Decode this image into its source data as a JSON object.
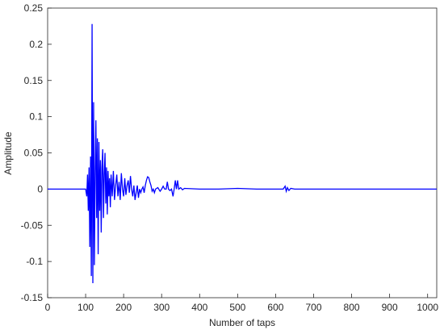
{
  "chart_data": {
    "type": "line",
    "xlabel": "Number of taps",
    "ylabel": "Amplitude",
    "color": "#0000ff",
    "x": [
      0,
      100,
      103,
      105,
      107,
      109,
      111,
      113,
      115,
      117,
      119,
      121,
      123,
      125,
      127,
      129,
      131,
      133,
      135,
      137,
      139,
      141,
      143,
      145,
      147,
      149,
      151,
      153,
      155,
      157,
      159,
      161,
      163,
      165,
      167,
      170,
      173,
      176,
      179,
      182,
      185,
      188,
      191,
      194,
      197,
      200,
      203,
      206,
      209,
      212,
      215,
      218,
      221,
      224,
      227,
      230,
      233,
      236,
      239,
      242,
      245,
      248,
      251,
      254,
      257,
      260,
      263,
      266,
      269,
      272,
      275,
      278,
      281,
      284,
      290,
      296,
      300,
      304,
      308,
      312,
      315,
      318,
      322,
      326,
      330,
      333,
      336,
      339,
      342,
      345,
      350,
      355,
      360,
      400,
      450,
      500,
      550,
      600,
      620,
      625,
      628,
      631,
      635,
      640,
      650,
      700,
      800,
      900,
      1024
    ],
    "values": [
      0,
      0,
      -0.01,
      0.02,
      -0.03,
      0.03,
      -0.08,
      0.045,
      -0.12,
      0.228,
      -0.13,
      0.12,
      -0.105,
      0.02,
      0.095,
      -0.04,
      0.07,
      -0.09,
      0.065,
      -0.03,
      0.04,
      -0.06,
      0.03,
      0.055,
      -0.04,
      0.02,
      0.05,
      -0.02,
      0.03,
      -0.035,
      0.025,
      -0.01,
      0.015,
      -0.025,
      0.02,
      -0.01,
      0.025,
      -0.015,
      0.005,
      0.02,
      -0.01,
      0.01,
      -0.015,
      0.022,
      0,
      -0.01,
      0.015,
      -0.008,
      0.005,
      0.012,
      -0.005,
      0.018,
      0,
      -0.01,
      0.005,
      -0.015,
      -0.005,
      0.005,
      -0.012,
      0,
      -0.005,
      0,
      0.003,
      -0.005,
      0.005,
      0.012,
      0.017,
      0.016,
      0.01,
      0.005,
      -0.003,
      0,
      -0.005,
      0,
      0.002,
      -0.003,
      0,
      0.004,
      0,
      0,
      0.01,
      0,
      -0.002,
      0,
      -0.01,
      0,
      0.012,
      0,
      0.012,
      0,
      0.002,
      -0.001,
      0.001,
      0,
      0,
      0.001,
      0,
      0,
      0,
      0.004,
      -0.003,
      0.002,
      -0.002,
      0.001,
      0,
      0,
      0,
      0,
      0
    ],
    "xlim": [
      0,
      1024
    ],
    "ylim": [
      -0.15,
      0.25
    ],
    "xticks": [
      0,
      100,
      200,
      300,
      400,
      500,
      600,
      700,
      800,
      900,
      1000
    ],
    "yticks": [
      -0.15,
      -0.1,
      -0.05,
      0,
      0.05,
      0.1,
      0.15,
      0.2,
      0.25
    ]
  }
}
